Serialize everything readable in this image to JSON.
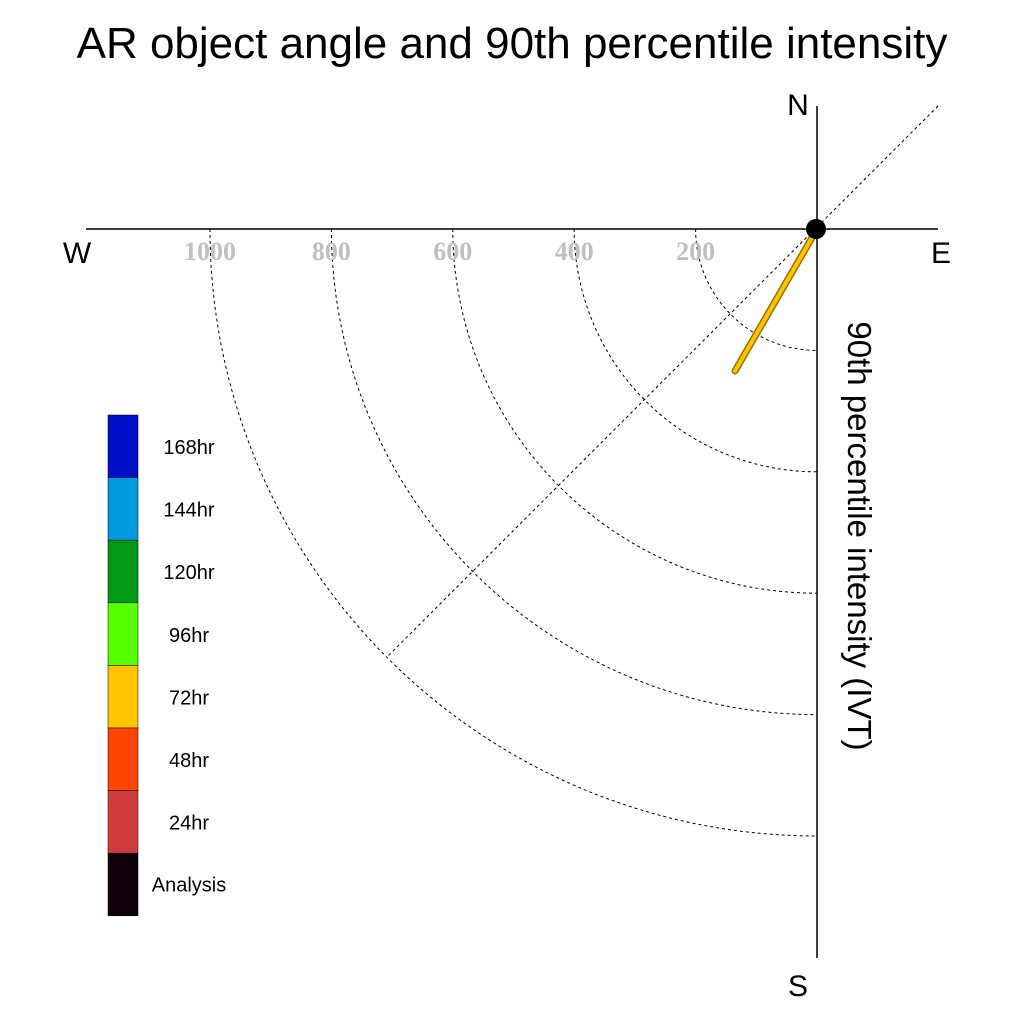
{
  "chart_data": {
    "type": "polar-line",
    "title": "AR object angle and 90th percentile intensity",
    "ylabel": "90th percentile intensity (IVT)",
    "directions": {
      "north": "N",
      "south": "S",
      "east": "E",
      "west": "W"
    },
    "radial_ticks": [
      200,
      400,
      600,
      800,
      1000
    ],
    "radial_max": 1000,
    "grid": true,
    "legend_position": "left",
    "legend": [
      {
        "label": "168hr",
        "color": "#0010c8"
      },
      {
        "label": "144hr",
        "color": "#009ade"
      },
      {
        "label": "120hr",
        "color": "#009a16"
      },
      {
        "label": "96hr",
        "color": "#55ff00"
      },
      {
        "label": "72hr",
        "color": "#ffc400"
      },
      {
        "label": "48hr",
        "color": "#ff4500"
      },
      {
        "label": "24hr",
        "color": "#d03c3c"
      },
      {
        "label": "Analysis",
        "color": "#0d0008"
      }
    ],
    "series": [
      {
        "name": "72hr",
        "color": "#ffc400",
        "angle_deg": 210,
        "intensity": 270
      }
    ]
  }
}
